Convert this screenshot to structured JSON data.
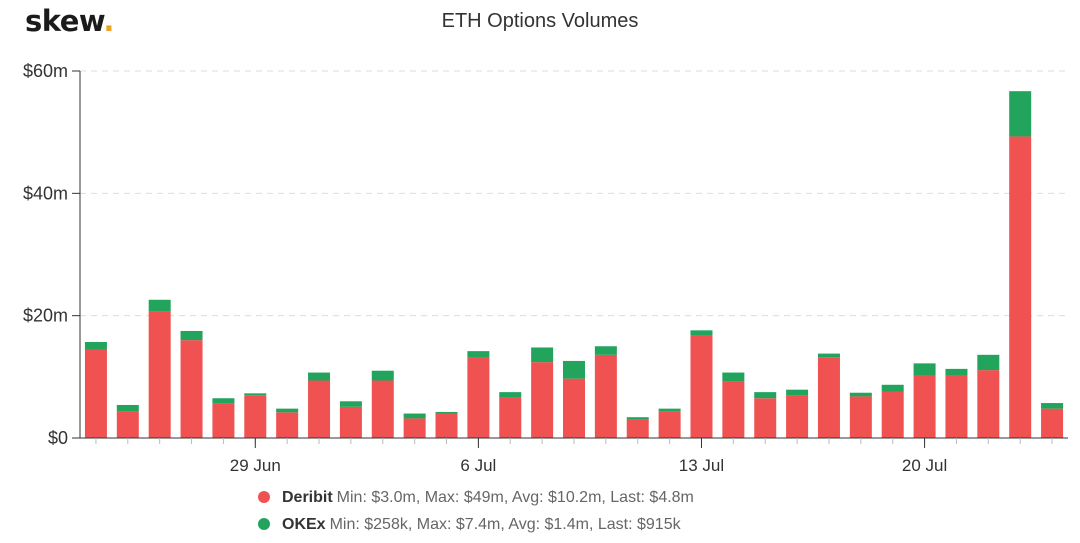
{
  "header": {
    "logo_text": "skew",
    "logo_dot": ".",
    "title": "ETH Options Volumes"
  },
  "colors": {
    "deribit": "#f05252",
    "okex": "#22a45d",
    "logo_dot": "#f0a11f",
    "grid": "#dddddd",
    "axis": "#333333"
  },
  "legend": {
    "items": [
      {
        "name": "Deribit",
        "stats": "Min: $3.0m, Max: $49m, Avg: $10.2m, Last: $4.8m"
      },
      {
        "name": "OKEx",
        "stats": "Min: $258k, Max: $7.4m, Avg: $1.4m, Last: $915k"
      }
    ]
  },
  "chart_data": {
    "type": "bar",
    "stacked": true,
    "title": "ETH Options Volumes",
    "x": [
      "24 Jun",
      "25 Jun",
      "26 Jun",
      "27 Jun",
      "28 Jun",
      "29 Jun",
      "30 Jun",
      "1 Jul",
      "2 Jul",
      "3 Jul",
      "4 Jul",
      "5 Jul",
      "6 Jul",
      "7 Jul",
      "8 Jul",
      "9 Jul",
      "10 Jul",
      "11 Jul",
      "12 Jul",
      "13 Jul",
      "14 Jul",
      "15 Jul",
      "16 Jul",
      "17 Jul",
      "18 Jul",
      "19 Jul",
      "20 Jul",
      "21 Jul",
      "22 Jul",
      "23 Jul",
      "24 Jul"
    ],
    "x_ticks": [
      {
        "at": "29 Jun",
        "label": "29 Jun"
      },
      {
        "at": "6 Jul",
        "label": "6 Jul"
      },
      {
        "at": "13 Jul",
        "label": "13 Jul"
      },
      {
        "at": "20 Jul",
        "label": "20 Jul"
      }
    ],
    "series": [
      {
        "name": "Deribit",
        "color": "#f05252",
        "values": [
          14.4,
          4.3,
          20.7,
          16.0,
          5.6,
          7.0,
          4.2,
          9.4,
          5.1,
          9.4,
          3.2,
          4.0,
          13.1,
          6.7,
          12.4,
          9.7,
          13.6,
          3.0,
          4.4,
          16.7,
          9.2,
          6.5,
          6.9,
          13.2,
          6.8,
          7.6,
          10.3,
          10.3,
          11.1,
          49.3,
          4.8
        ]
      },
      {
        "name": "OKEx",
        "color": "#22a45d",
        "values": [
          1.3,
          1.1,
          1.9,
          1.5,
          0.9,
          0.3,
          0.6,
          1.3,
          0.9,
          1.6,
          0.8,
          0.26,
          1.1,
          0.8,
          2.4,
          2.9,
          1.4,
          0.4,
          0.4,
          0.9,
          1.5,
          1.0,
          1.0,
          0.6,
          0.6,
          1.1,
          1.9,
          1.0,
          2.5,
          7.4,
          0.915
        ]
      }
    ],
    "y_ticks": [
      {
        "value": 0,
        "label": "$0"
      },
      {
        "value": 20,
        "label": "$20m"
      },
      {
        "value": 40,
        "label": "$40m"
      },
      {
        "value": 60,
        "label": "$60m"
      }
    ],
    "ylim": [
      0,
      60
    ],
    "grid": true,
    "legend_position": "bottom"
  }
}
